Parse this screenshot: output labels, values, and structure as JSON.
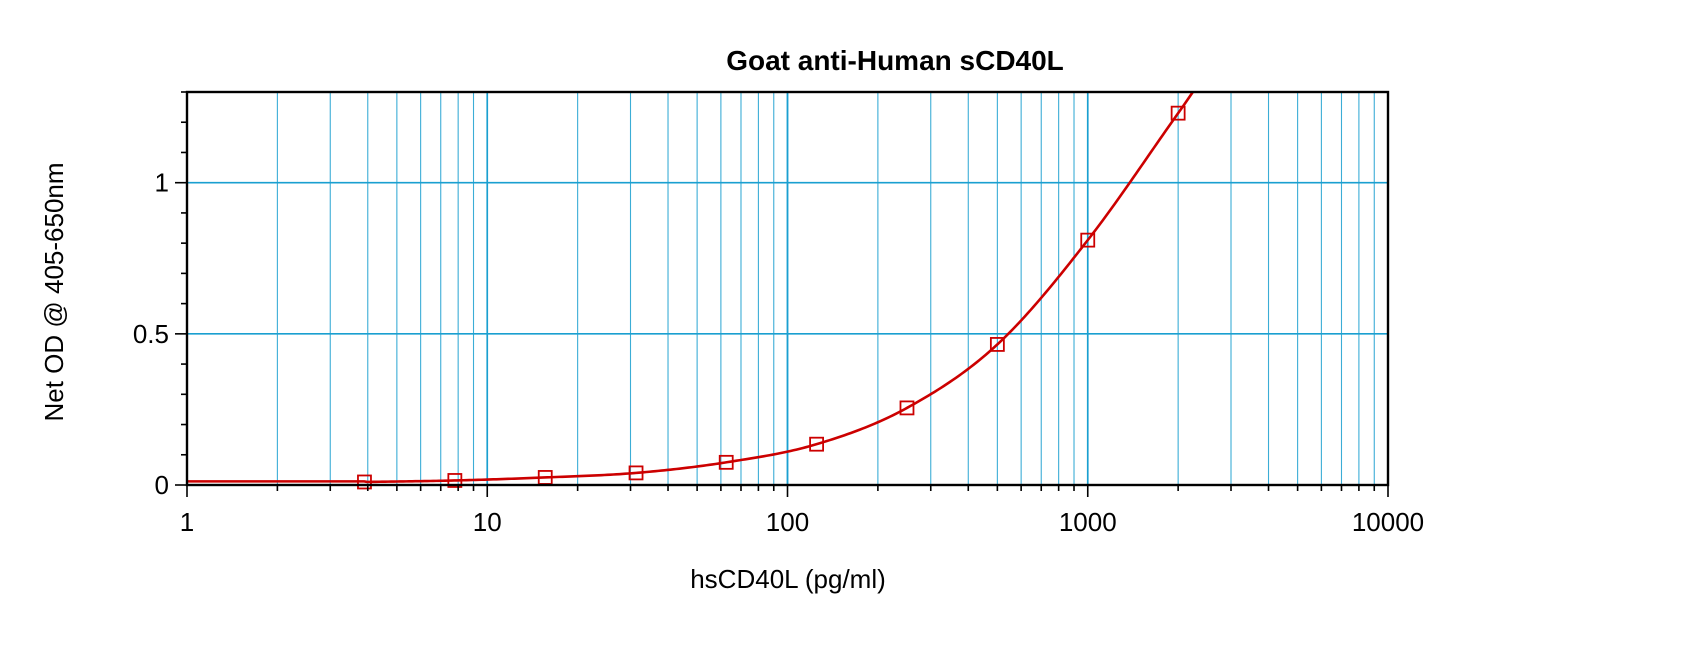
{
  "chart_data": {
    "type": "line",
    "title": "Goat anti-Human sCD40L",
    "xlabel": "hsCD40L (pg/ml)",
    "ylabel": "Net OD @ 405-650nm",
    "x_scale": "log",
    "xlim": [
      1,
      10000
    ],
    "ylim": [
      0,
      1.3
    ],
    "x_ticks": [
      1,
      10,
      100,
      1000,
      10000
    ],
    "x_tick_labels": [
      "1",
      "10",
      "100",
      "1000",
      "10000"
    ],
    "y_ticks": [
      0,
      0.5,
      1
    ],
    "y_tick_labels": [
      "0",
      "0.5",
      "1"
    ],
    "grid": true,
    "legend": "none",
    "series": [
      {
        "marker": "square",
        "x": [
          3.9,
          7.8,
          15.6,
          31.3,
          62.5,
          125,
          250,
          500,
          1000,
          2000
        ],
        "y": [
          0.01,
          0.015,
          0.025,
          0.04,
          0.075,
          0.135,
          0.255,
          0.465,
          0.81,
          1.23
        ]
      }
    ],
    "colors": {
      "series": "#cc0000",
      "grid": "#1a9fd0",
      "axis": "#000000"
    }
  }
}
